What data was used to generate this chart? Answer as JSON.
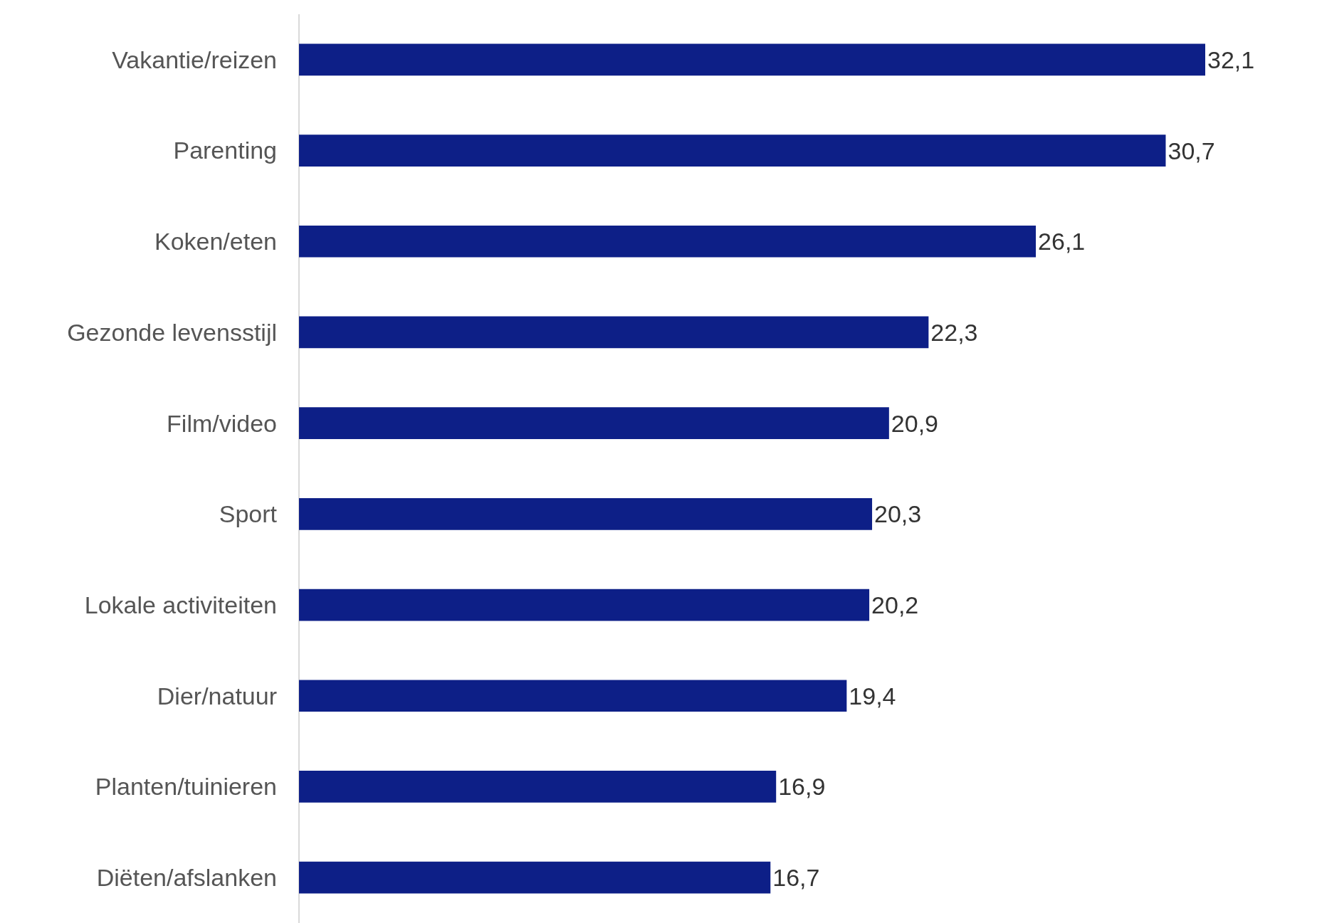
{
  "chart_data": {
    "type": "bar",
    "orientation": "horizontal",
    "tick_labels": "y",
    "color": "#0d1f87",
    "categories": [
      "Vakantie/reizen",
      "Parenting",
      "Koken/eten",
      "Gezonde levensstijl",
      "Film/video",
      "Sport",
      "Lokale activiteiten",
      "Dier/natuur",
      "Planten/tuinieren",
      "Diëten/afslanken"
    ],
    "values": [
      32.1,
      30.7,
      26.1,
      22.3,
      20.9,
      20.3,
      20.2,
      19.4,
      16.9,
      16.7
    ],
    "value_labels": [
      "32,1",
      "30,7",
      "26,1",
      "22,3",
      "20,9",
      "20,3",
      "20,2",
      "19,4",
      "16,9",
      "16,7"
    ]
  }
}
